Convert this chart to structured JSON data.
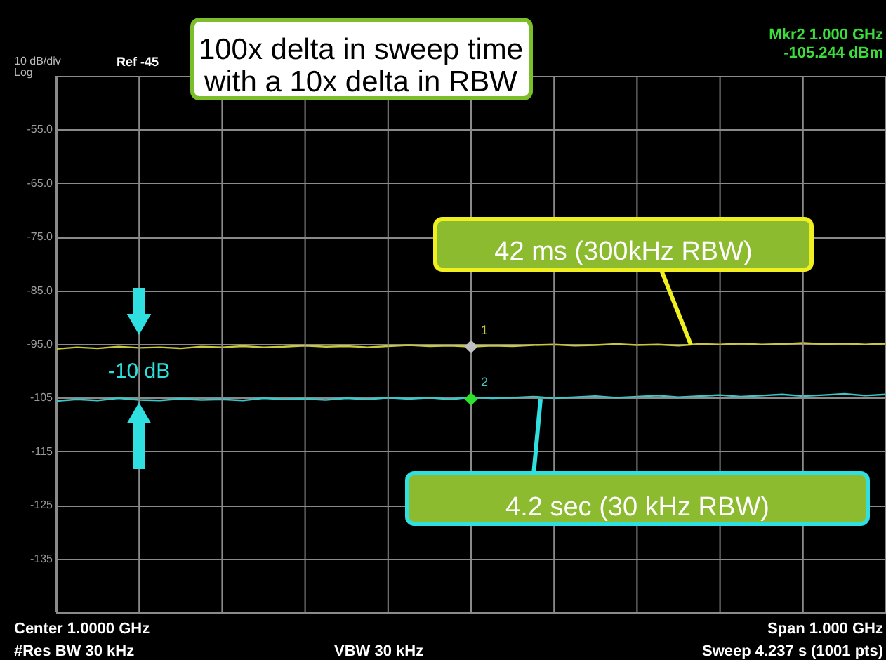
{
  "chart_data": {
    "type": "line",
    "categories": [
      null,
      null,
      null,
      null,
      null,
      null,
      null,
      null,
      null,
      null,
      null,
      null,
      null,
      null,
      null,
      null,
      null,
      null,
      null,
      null,
      null,
      null,
      null,
      null,
      null,
      null,
      null,
      null,
      null,
      null,
      null,
      null,
      null,
      null,
      null,
      null,
      null,
      null,
      null,
      null,
      null
    ],
    "series": [
      {
        "color": "#c8c83a",
        "values": [
          -95.9,
          -95.6,
          -95.8,
          -95.5,
          -95.7,
          -95.6,
          -95.8,
          -95.5,
          -95.6,
          -95.4,
          -95.6,
          -95.5,
          -95.3,
          -95.5,
          -95.4,
          -95.6,
          -95.4,
          -95.2,
          -95.4,
          -95.3,
          -95.5,
          -95.3,
          -95.4,
          -95.2,
          -95.1,
          -95.3,
          -95.2,
          -95.0,
          -95.2,
          -95.1,
          -95.3,
          -95.0,
          -95.1,
          -94.9,
          -95.1,
          -95.0,
          -94.8,
          -95.0,
          -94.9,
          -95.1,
          -94.9
        ]
      },
      {
        "color": "#3cc8c8",
        "values": [
          -105.6,
          -105.3,
          -105.5,
          -105.1,
          -105.4,
          -105.5,
          -105.2,
          -105.4,
          -105.3,
          -105.5,
          -105.1,
          -105.3,
          -105.2,
          -105.4,
          -105.1,
          -105.3,
          -105.0,
          -105.2,
          -105.0,
          -105.3,
          -104.9,
          -105.1,
          -105.0,
          -104.8,
          -105.1,
          -104.9,
          -104.7,
          -105.0,
          -104.8,
          -104.6,
          -104.9,
          -104.7,
          -104.5,
          -104.8,
          -104.6,
          -104.4,
          -104.7,
          -104.5,
          -104.3,
          -104.6,
          -104.4
        ]
      }
    ],
    "ylim": [
      -145,
      -45
    ],
    "yticks": [
      {
        "value": -45,
        "label": null
      },
      {
        "value": -55,
        "label": "-55.0"
      },
      {
        "value": -65,
        "label": "-65.0"
      },
      {
        "value": -75,
        "label": "-75.0"
      },
      {
        "value": -85,
        "label": "-85.0"
      },
      {
        "value": -95,
        "label": "-95.0"
      },
      {
        "value": -105,
        "label": "-105"
      },
      {
        "value": -115,
        "label": "-115"
      },
      {
        "value": -125,
        "label": "-125"
      },
      {
        "value": -135,
        "label": "-135"
      },
      {
        "value": -145,
        "label": null
      }
    ],
    "tick_labels": "y",
    "grid": true,
    "annotations": [
      "10 dB/div",
      "Log",
      "Ref -45",
      "Mkr2 1.000 GHz",
      "-105.244 dBm",
      "Center 1.0000 GHz",
      "#Res BW 30 kHz",
      "VBW 30 kHz",
      "Span 1.000 GHz",
      "Sweep  4.237 s (1001 pts)",
      "100x delta in sweep time\nwith a 10x delta in RBW",
      {
        "text": "42 ms (300kHz RBW)",
        "y": -95.1
      },
      "4.2 sec (30 kHz RBW)",
      "-10 dB",
      {
        "text": "1",
        "y": -95.5
      },
      {
        "text": "2",
        "y": -105.244
      }
    ]
  }
}
